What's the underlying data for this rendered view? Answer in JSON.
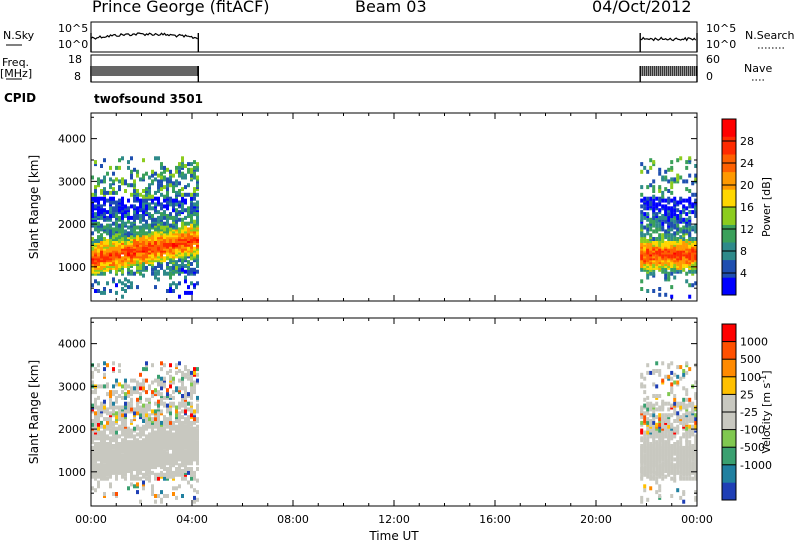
{
  "header": {
    "station": "Prince George (fitACF)",
    "beam": "Beam 03",
    "date": "04/Oct/2012"
  },
  "top_panels": {
    "nsky_label": "N.Sky",
    "nsky_ticks": [
      "10^5",
      "10^0"
    ],
    "nsearch_label": "N.Search",
    "nsearch_ticks": [
      "10^5",
      "10^0"
    ],
    "freq_label": "Freq.",
    "freq_unit": "[MHz]",
    "freq_ticks": [
      "18",
      "8"
    ],
    "nave_label": "Nave",
    "nave_ticks": [
      "60",
      "0"
    ],
    "cpid_label": "CPID",
    "cpid_value": "twofsound 3501"
  },
  "colors": {
    "power_scale": [
      "#0000ff",
      "#1f4fb0",
      "#2e8a8a",
      "#3aa05a",
      "#8ccc1e",
      "#ffd700",
      "#ff9900",
      "#ff6000",
      "#ff2a00",
      "#ff0000"
    ],
    "velocity_scale": [
      "#1f3fb5",
      "#2080a0",
      "#3aa070",
      "#80c850",
      "#c8c8c0",
      "#c8c8c0",
      "#ffc000",
      "#ff8a00",
      "#ff5000",
      "#ff0000"
    ]
  },
  "chart_data": [
    {
      "type": "heatmap",
      "panel": "power",
      "ylabel": "Slant Range [km]",
      "ylim": [
        200,
        4600
      ],
      "yticks": [
        "4000",
        "3000",
        "2000",
        "1000"
      ],
      "xlim": [
        0,
        24
      ],
      "data_windows_ut": [
        [
          0,
          4.25
        ],
        [
          21.75,
          24
        ]
      ],
      "colorbar_label": "Power [dB]",
      "colorbar_ticks": [
        "28",
        "24",
        "20",
        "16",
        "12",
        "8",
        "4"
      ],
      "colorbar_range": [
        0,
        32
      ]
    },
    {
      "type": "heatmap",
      "panel": "velocity",
      "ylabel": "Slant Range [km]",
      "ylim": [
        200,
        4600
      ],
      "yticks": [
        "4000",
        "3000",
        "2000",
        "1000"
      ],
      "xlim": [
        0,
        24
      ],
      "data_windows_ut": [
        [
          0,
          4.25
        ],
        [
          21.75,
          24
        ]
      ],
      "colorbar_label": "Velocity [m s",
      "colorbar_label_sup": "-1",
      "colorbar_label_end": "]",
      "colorbar_ticks": [
        "1000",
        "500",
        "100",
        "25",
        "-25",
        "-100",
        "-500",
        "-1000"
      ]
    }
  ],
  "xaxis": {
    "ticks": [
      "00:00",
      "04:00",
      "08:00",
      "12:00",
      "16:00",
      "20:00",
      "00:00"
    ],
    "label": "Time UT"
  }
}
